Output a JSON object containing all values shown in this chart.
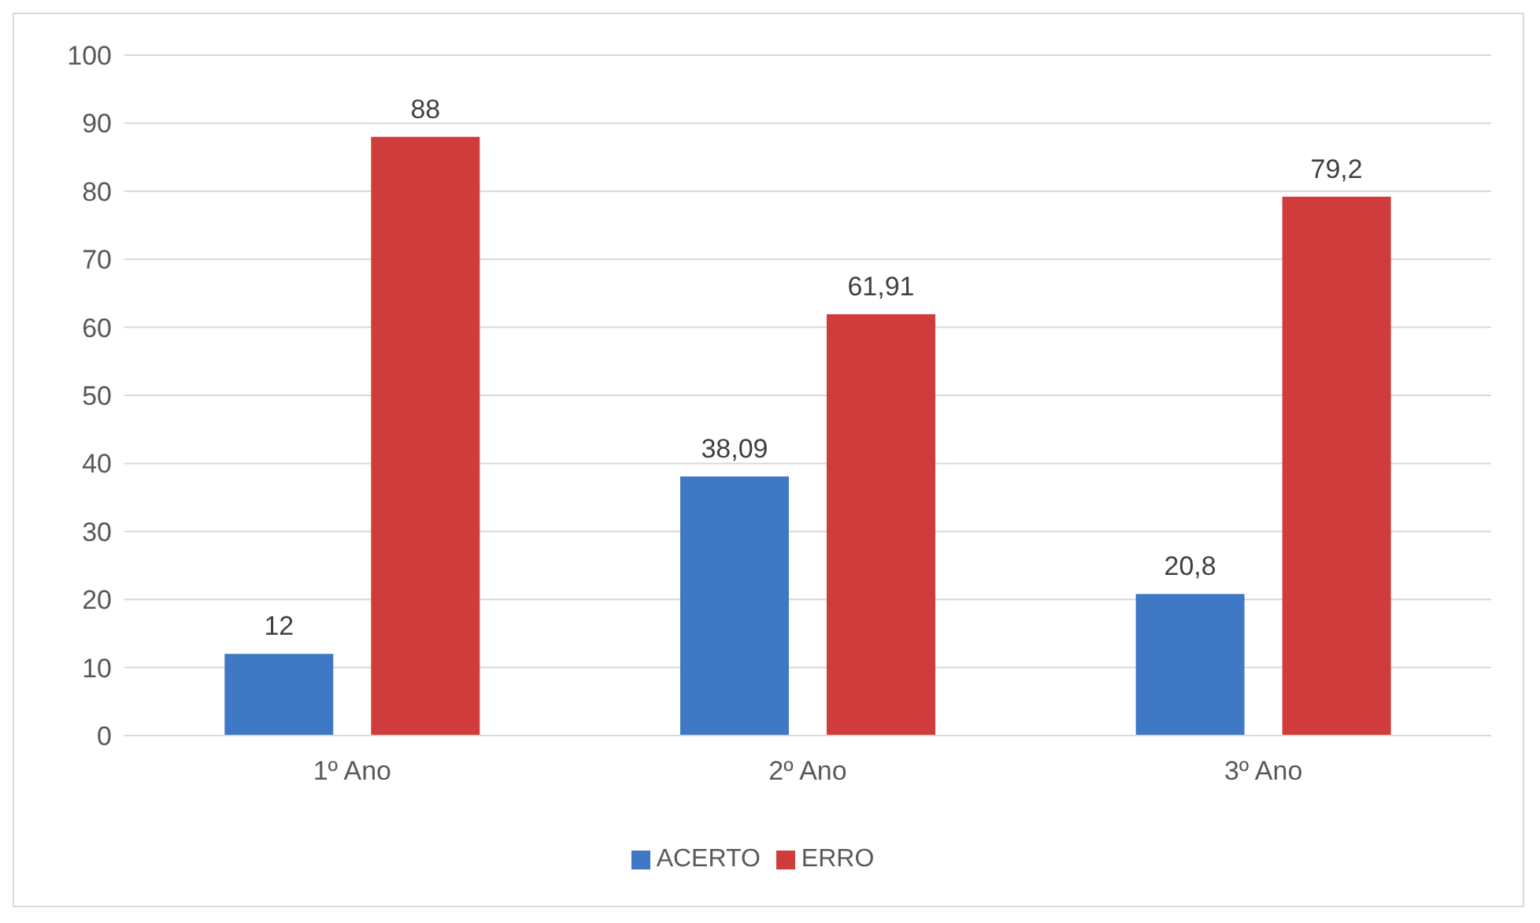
{
  "chart_data": {
    "type": "bar",
    "categories": [
      "1º Ano",
      "2º Ano",
      "3º Ano"
    ],
    "series": [
      {
        "name": "ACERTO",
        "color": "#3f78c4",
        "values": [
          12,
          38.09,
          20.8
        ],
        "value_labels": [
          "12",
          "38,09",
          "20,8"
        ]
      },
      {
        "name": "ERRO",
        "color": "#d03b3b",
        "values": [
          88,
          61.91,
          79.2
        ],
        "value_labels": [
          "88",
          "61,91",
          "79,2"
        ]
      }
    ],
    "ylim": [
      0,
      100
    ],
    "yticks": [
      0,
      10,
      20,
      30,
      40,
      50,
      60,
      70,
      80,
      90,
      100
    ],
    "grid": "y",
    "legend": "bottom"
  }
}
